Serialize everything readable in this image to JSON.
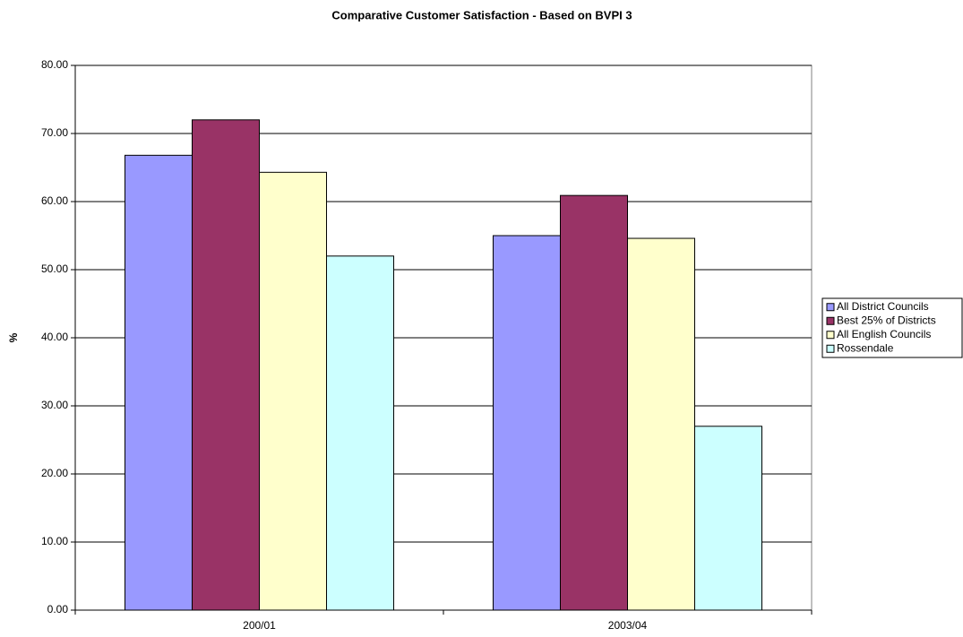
{
  "chart_data": {
    "type": "bar",
    "title": "Comparative Customer Satisfaction - Based on BVPI 3",
    "y_label": "%",
    "categories": [
      "200/01",
      "2003/04"
    ],
    "series": [
      {
        "name": "All District Councils",
        "color": "#9999ff",
        "values": [
          66.8,
          55
        ]
      },
      {
        "name": "Best 25% of Districts",
        "color": "#993366",
        "values": [
          72,
          60.9
        ]
      },
      {
        "name": "All English Councils",
        "color": "#ffffcc",
        "values": [
          64.3,
          54.6
        ]
      },
      {
        "name": "Rossendale",
        "color": "#ccffff",
        "values": [
          52,
          27
        ]
      }
    ],
    "ylim": [
      0,
      80
    ],
    "yticks": [
      {
        "value": 0,
        "label": "0.00"
      },
      {
        "value": 10,
        "label": "10.00"
      },
      {
        "value": 20,
        "label": "20.00"
      },
      {
        "value": 30,
        "label": "30.00"
      },
      {
        "value": 40,
        "label": "40.00"
      },
      {
        "value": 50,
        "label": "50.00"
      },
      {
        "value": 60,
        "label": "60.00"
      },
      {
        "value": 70,
        "label": "70.00"
      },
      {
        "value": 80,
        "label": "80.00"
      }
    ],
    "grid": true,
    "legend": "right"
  }
}
